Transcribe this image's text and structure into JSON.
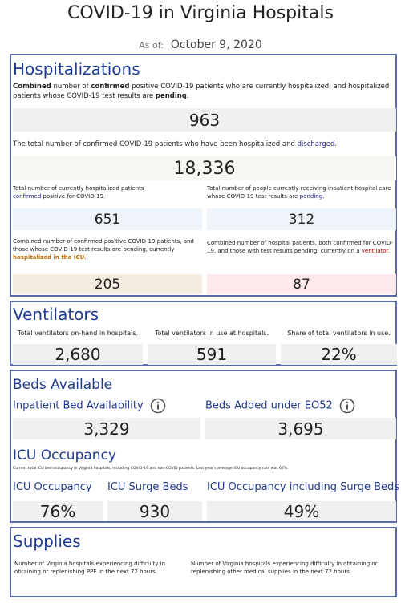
{
  "header": {
    "title": "COVID-19 in Virginia Hospitals",
    "as_of_label": "As of:",
    "as_of_date": "October 9, 2020"
  },
  "hospitalizations": {
    "title": "Hospitalizations",
    "current": {
      "desc": [
        "Combined",
        " number of ",
        "confirmed",
        " positive COVID-19 patients who are currently hospitalized, and hospitalized patients whose COVID-19 test results are ",
        "pending",
        "."
      ],
      "value": "963"
    },
    "discharged": {
      "desc": [
        "The total number of confirmed COVID-19 patients who have been hospitalized and ",
        "discharged",
        "."
      ],
      "value": "18,336"
    },
    "confirmed": {
      "desc": [
        "Total number of currently hospitalized patients ",
        "confirmed",
        " positive for COVID-19."
      ],
      "value": "651"
    },
    "pending": {
      "desc": [
        "Total number of people currently receiving inpatient hospital care whose COVID-19 test results are ",
        "pending",
        "."
      ],
      "value": "312"
    },
    "icu": {
      "desc": [
        "Combined number of confirmed positive COVID-19 patients, and those whose COVID-19 test results are pending, currently ",
        "hospitalized in the ICU",
        "."
      ],
      "value": "205"
    },
    "ventilator": {
      "desc": [
        "Combined number of hospital patients, both confirmed for COVID-19, and those with test results pending, currently on a ",
        "ventilator",
        "."
      ],
      "value": "87"
    }
  },
  "ventilators": {
    "title": "Ventilators",
    "items": [
      {
        "label": "Total ventilators on-hand in hospitals.",
        "value": "2,680"
      },
      {
        "label": "Total ventilators in use at hospitals.",
        "value": "591"
      },
      {
        "label": "Share of total ventilators in use.",
        "value": "22%"
      }
    ]
  },
  "beds": {
    "title": "Beds Available",
    "items": [
      {
        "label": "Inpatient Bed Availability",
        "value": "3,329"
      },
      {
        "label": "Beds Added under EO52",
        "value": "3,695"
      }
    ]
  },
  "icu_occupancy": {
    "title": "ICU Occupancy",
    "note": "Current total ICU bed occupancy in Virginia hospitals, including COVID-19 and non-COVID patients. Last year's average ICU occupancy rate was 67%.",
    "items": [
      {
        "label": "ICU Occupancy",
        "value": "76%"
      },
      {
        "label": "ICU Surge Beds",
        "value": "930"
      },
      {
        "label": "ICU Occupancy including Surge Beds",
        "value": "49%"
      }
    ]
  },
  "supplies": {
    "title": "Supplies",
    "items": [
      "Number of Virginia hospitals experiencing difficulty in obtaining or replenishing PPE in the next 72 hours.",
      "Number of Virginia hospitals experiencing difficulty in obtaining or replenishing other medical supplies in the next 72 hours."
    ]
  }
}
